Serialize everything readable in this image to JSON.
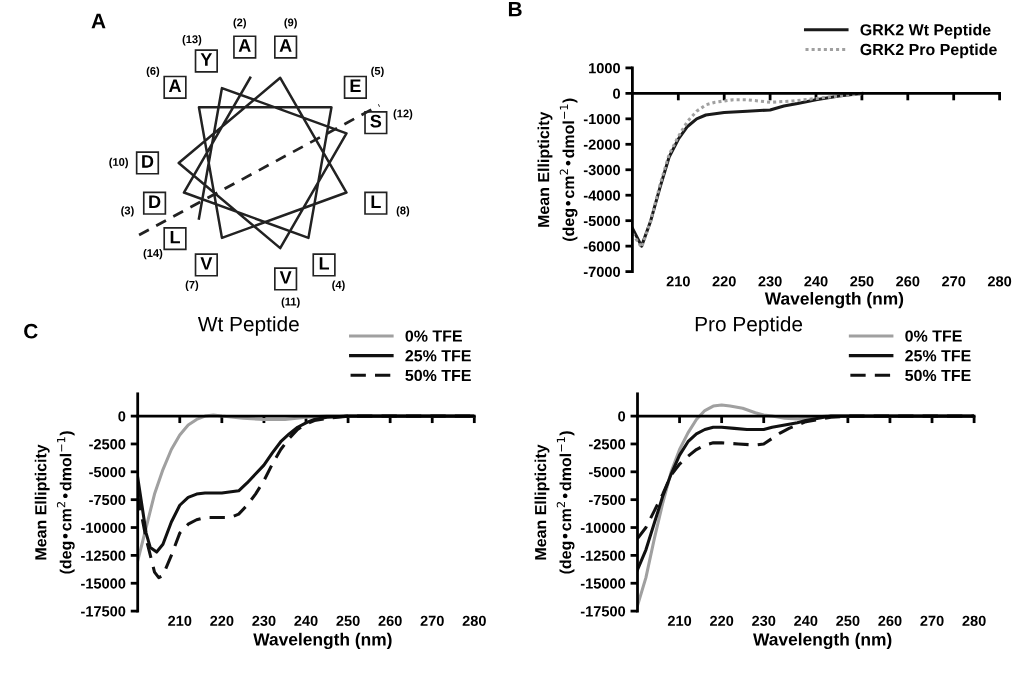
{
  "chart_data": [
    {
      "type": "other",
      "annotations": [
        "A",
        "(2)",
        "(3)",
        "(4)",
        "(5)",
        "(6)",
        "(7)",
        "(8)",
        "(9)",
        "(10)",
        "(11)",
        "(12)",
        "(13)",
        "(14)"
      ],
      "categories": [
        "A",
        "D",
        "L",
        "E",
        "A",
        "V",
        "L",
        "A",
        "D",
        "V",
        "S",
        "Y",
        "L"
      ]
    },
    {
      "type": "line",
      "annotations": [
        "B"
      ],
      "xlabel": "Wavelength (nm)",
      "ylabel": "Mean Ellipticity\n(deg•cm$^{2}$•dmol$^{−1}$)",
      "xlim": [
        200,
        280
      ],
      "xticks": [
        210,
        220,
        230,
        240,
        250,
        260,
        270,
        280
      ],
      "ylim": [
        -7000,
        1000
      ],
      "yticks": [
        1000,
        0,
        -1000,
        -2000,
        -3000,
        -4000,
        -5000,
        -6000,
        -7000
      ],
      "legend": "top right",
      "series": [
        {
          "name": "GRK2 Wt Peptide",
          "color": "#1a1a1a",
          "line_style": "solid",
          "x": [
            200,
            202,
            204,
            206,
            208,
            210,
            212,
            214,
            216,
            218,
            220,
            225,
            230,
            233,
            236,
            240,
            245,
            250
          ],
          "values": [
            -5300,
            -6000,
            -5000,
            -3700,
            -2500,
            -1800,
            -1300,
            -1000,
            -850,
            -800,
            -750,
            -700,
            -650,
            -500,
            -400,
            -250,
            -100,
            0
          ]
        },
        {
          "name": "GRK2 Pro Peptide",
          "color": "#a0a0a0",
          "line_style": "dotted",
          "x": [
            200,
            202,
            204,
            206,
            208,
            210,
            212,
            214,
            216,
            218,
            220,
            222,
            225,
            230,
            235,
            240,
            245,
            250
          ],
          "values": [
            -5500,
            -6050,
            -5000,
            -3600,
            -2400,
            -1700,
            -1100,
            -700,
            -450,
            -350,
            -300,
            -250,
            -250,
            -350,
            -300,
            -200,
            -100,
            -20
          ]
        }
      ]
    },
    {
      "type": "line",
      "title": "Wt Peptide",
      "annotations": [
        "C"
      ],
      "xlabel": "Wavelength (nm)",
      "ylabel": "Mean Ellipticity\n(deg•cm$^{2}$•dmol$^{−1}$)",
      "xlim": [
        200,
        280
      ],
      "xticks": [
        210,
        220,
        230,
        240,
        250,
        260,
        270,
        280
      ],
      "ylim": [
        -17500,
        2000
      ],
      "yticks": [
        0,
        -2500,
        -5000,
        -7500,
        -10000,
        -12500,
        -15000,
        -17500
      ],
      "legend": "top right",
      "series": [
        {
          "name": "0% TFE",
          "color": "#a0a0a0",
          "line_style": "solid",
          "x": [
            200,
            202,
            204,
            206,
            208,
            210,
            212,
            214,
            216,
            218,
            220,
            225,
            230,
            235,
            240,
            245,
            250,
            260,
            270,
            280
          ],
          "values": [
            -13000,
            -10000,
            -7000,
            -4800,
            -3000,
            -1700,
            -800,
            -300,
            0,
            100,
            0,
            -200,
            -300,
            -300,
            -100,
            0,
            0,
            0,
            0,
            0
          ]
        },
        {
          "name": "25% TFE",
          "color": "#111111",
          "line_style": "solid",
          "x": [
            200,
            201,
            202,
            203,
            204.5,
            206,
            208,
            210,
            212,
            214,
            216,
            218,
            220,
            224,
            226,
            228,
            230,
            232,
            234,
            236,
            238,
            240,
            242,
            245,
            250,
            260,
            270,
            280
          ],
          "values": [
            -5500,
            -8000,
            -10500,
            -11800,
            -12200,
            -11500,
            -9500,
            -8000,
            -7300,
            -7000,
            -6900,
            -6900,
            -6900,
            -6700,
            -6000,
            -5200,
            -4400,
            -3300,
            -2300,
            -1600,
            -1000,
            -600,
            -300,
            -100,
            0,
            0,
            0,
            0
          ]
        },
        {
          "name": "50% TFE",
          "color": "#111111",
          "line_style": "dashed",
          "x": [
            200,
            202,
            204,
            205,
            206,
            208,
            210,
            212,
            214,
            216,
            220,
            222,
            224,
            226,
            228,
            230,
            232,
            234,
            236,
            238,
            240,
            242,
            245,
            250,
            260,
            270,
            280
          ],
          "values": [
            -7100,
            -11000,
            -14000,
            -14500,
            -14300,
            -12500,
            -10500,
            -9700,
            -9300,
            -9100,
            -9100,
            -9100,
            -8800,
            -8000,
            -7000,
            -5800,
            -4300,
            -3000,
            -2000,
            -1200,
            -700,
            -400,
            -200,
            0,
            0,
            0,
            0
          ]
        }
      ]
    },
    {
      "type": "line",
      "title": "Pro Peptide",
      "xlabel": "Wavelength (nm)",
      "ylabel": "Mean Ellipticity\n(deg•cm$^{2}$•dmol$^{−1}$)",
      "xlim": [
        200,
        280
      ],
      "xticks": [
        210,
        220,
        230,
        240,
        250,
        260,
        270,
        280
      ],
      "ylim": [
        -17500,
        2000
      ],
      "yticks": [
        0,
        -2500,
        -5000,
        -7500,
        -10000,
        -12500,
        -15000,
        -17500
      ],
      "legend": "top right",
      "series": [
        {
          "name": "0% TFE",
          "color": "#a0a0a0",
          "line_style": "solid",
          "x": [
            200,
            202,
            204,
            206,
            208,
            210,
            212,
            214,
            216,
            218,
            220,
            222,
            225,
            228,
            230,
            232,
            235,
            238,
            240,
            245,
            250,
            260,
            270,
            280
          ],
          "values": [
            -17000,
            -14500,
            -11000,
            -7800,
            -5000,
            -3000,
            -1500,
            -300,
            500,
            900,
            1000,
            900,
            700,
            300,
            100,
            0,
            -200,
            -250,
            -200,
            0,
            0,
            0,
            0,
            0
          ]
        },
        {
          "name": "25% TFE",
          "color": "#111111",
          "line_style": "solid",
          "x": [
            200,
            202,
            204,
            206,
            208,
            210,
            212,
            214,
            216,
            218,
            220,
            223,
            226,
            230,
            232,
            235,
            238,
            240,
            243,
            246,
            250,
            260,
            270,
            280
          ],
          "values": [
            -13800,
            -12000,
            -9600,
            -7200,
            -5200,
            -3500,
            -2300,
            -1600,
            -1200,
            -1000,
            -1000,
            -1100,
            -1200,
            -1200,
            -1000,
            -800,
            -600,
            -400,
            -200,
            0,
            0,
            0,
            0,
            0
          ]
        },
        {
          "name": "50% TFE",
          "color": "#111111",
          "line_style": "dashed",
          "x": [
            200,
            202,
            204,
            206,
            208,
            210,
            212,
            214,
            216,
            218,
            220,
            224,
            228,
            230,
            232,
            234,
            236,
            238,
            240,
            243,
            246,
            250,
            260,
            270,
            280
          ],
          "values": [
            -11000,
            -10000,
            -8500,
            -7000,
            -5300,
            -4300,
            -3600,
            -3000,
            -2600,
            -2400,
            -2400,
            -2500,
            -2600,
            -2500,
            -2000,
            -1500,
            -1100,
            -800,
            -500,
            -300,
            -100,
            0,
            0,
            0,
            0
          ]
        }
      ]
    }
  ]
}
